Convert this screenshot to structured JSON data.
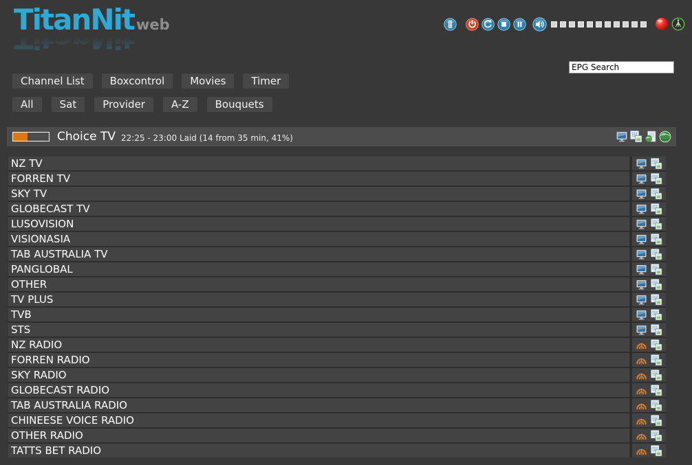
{
  "colors": {
    "background": "#383838",
    "row": "#434343",
    "button": "#474747",
    "accent_blue": "#2f81ab",
    "logo_cyan": "#2fa9d6",
    "progress_orange": "#e0760f",
    "record_red": "#e53022",
    "signal_green": "#5abf4e"
  },
  "brand": {
    "title": "TitanNit",
    "suffix": "web"
  },
  "topbar": {
    "control_icons": [
      "remote-icon",
      "power-icon",
      "restart-icon",
      "stop-icon",
      "pause-icon"
    ],
    "volume_icon": "speaker-icon",
    "volume_segments": 11,
    "status_icons": [
      "record-icon",
      "antenna-icon"
    ]
  },
  "search": {
    "value": "EPG Search"
  },
  "nav": [
    "Channel List",
    "Boxcontrol",
    "Movies",
    "Timer"
  ],
  "filters": [
    "All",
    "Sat",
    "Provider",
    "A-Z",
    "Bouquets"
  ],
  "now_playing": {
    "channel": "Choice TV",
    "details": "22:25 - 23:00 Laid (14 from 35 min, 41%)",
    "progress_percent": 41,
    "action_icons": [
      "screen-icon",
      "epg-pages-icon",
      "webpage-icon",
      "globe-icon"
    ]
  },
  "row_icons": {
    "tv": "tv-icon",
    "radio": "radio-icon",
    "epg": "epg-pages-icon"
  },
  "channel_list": [
    {
      "name": "NZ TV",
      "type": "tv"
    },
    {
      "name": "FORREN TV",
      "type": "tv"
    },
    {
      "name": "SKY TV",
      "type": "tv"
    },
    {
      "name": "GLOBECAST TV",
      "type": "tv"
    },
    {
      "name": "LUSOVISION",
      "type": "tv"
    },
    {
      "name": "VISIONASIA",
      "type": "tv"
    },
    {
      "name": "TAB AUSTRALIA TV",
      "type": "tv"
    },
    {
      "name": "PANGLOBAL",
      "type": "tv"
    },
    {
      "name": "OTHER",
      "type": "tv"
    },
    {
      "name": "TV PLUS",
      "type": "tv"
    },
    {
      "name": "TVB",
      "type": "tv"
    },
    {
      "name": "STS",
      "type": "tv"
    },
    {
      "name": "NZ RADIO",
      "type": "radio"
    },
    {
      "name": "FORREN RADIO",
      "type": "radio"
    },
    {
      "name": "SKY RADIO",
      "type": "radio"
    },
    {
      "name": "GLOBECAST RADIO",
      "type": "radio"
    },
    {
      "name": "TAB AUSTRALIA RADIO",
      "type": "radio"
    },
    {
      "name": "CHINEESE VOICE RADIO",
      "type": "radio"
    },
    {
      "name": "OTHER RADIO",
      "type": "radio"
    },
    {
      "name": "TATTS BET RADIO",
      "type": "radio"
    }
  ]
}
